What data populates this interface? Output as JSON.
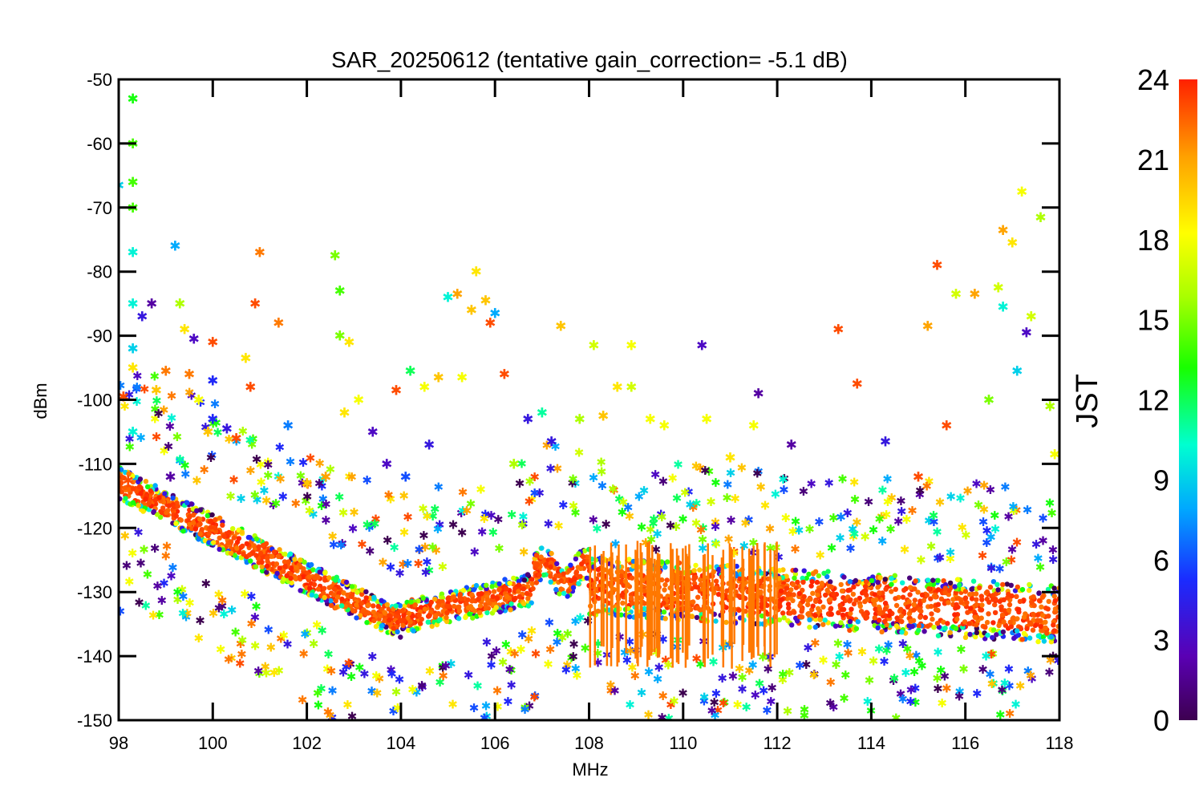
{
  "chart_data": {
    "type": "scatter",
    "title": "SAR_20250612 (tentative gain_correction= -5.1 dB)",
    "xlabel": "MHz",
    "ylabel": "dBm",
    "xlim": [
      98,
      118
    ],
    "ylim": [
      -150,
      -50
    ],
    "x_ticks": [
      "98",
      "100",
      "102",
      "104",
      "106",
      "108",
      "110",
      "112",
      "114",
      "116",
      "118"
    ],
    "y_ticks": [
      "-50",
      "-60",
      "-70",
      "-80",
      "-90",
      "-100",
      "-110",
      "-120",
      "-130",
      "-140",
      "-150"
    ],
    "colorbar": {
      "label": "JST",
      "range": [
        0,
        24
      ],
      "ticks": [
        "0",
        "3",
        "6",
        "9",
        "12",
        "15",
        "18",
        "21",
        "24"
      ],
      "colormap": "rainbow (purple to red)"
    },
    "marker": "asterisk",
    "grid": false,
    "series": [
      {
        "values_note": "",
        "points": [
          [
            98.1,
            -99.5,
            23
          ],
          [
            98.2,
            -112.6,
            23
          ],
          [
            98.3,
            -95.0,
            19
          ],
          [
            98.3,
            -53.0,
            13
          ],
          [
            98.3,
            -60.0,
            14
          ],
          [
            98.3,
            -66.0,
            14
          ],
          [
            98.3,
            -70.0,
            14
          ],
          [
            98.3,
            -77.0,
            10
          ],
          [
            98.3,
            -85.0,
            10
          ],
          [
            98.3,
            -92.0,
            9
          ],
          [
            98.3,
            -105.0,
            10
          ],
          [
            98.0,
            -66.5,
            9
          ],
          [
            98.5,
            -87.0,
            4
          ],
          [
            98.7,
            -85.0,
            2
          ],
          [
            98.8,
            -98.5,
            20
          ],
          [
            99.0,
            -95.5,
            22
          ],
          [
            99.1,
            -112.0,
            2
          ],
          [
            99.2,
            -76.0,
            8
          ],
          [
            99.3,
            -85.0,
            16
          ],
          [
            99.4,
            -89.0,
            19
          ],
          [
            99.5,
            -96.0,
            22
          ],
          [
            99.6,
            -90.5,
            3
          ],
          [
            99.7,
            -100.0,
            18
          ],
          [
            99.9,
            -105.0,
            20
          ],
          [
            100.0,
            -91.0,
            23
          ],
          [
            100.0,
            -97.0,
            5
          ],
          [
            100.0,
            -103.0,
            5
          ],
          [
            100.3,
            -104.5,
            4
          ],
          [
            100.5,
            -106.0,
            23
          ],
          [
            100.7,
            -93.5,
            19
          ],
          [
            100.8,
            -98.0,
            23
          ],
          [
            100.9,
            -85.0,
            23
          ],
          [
            101.0,
            -77.0,
            22
          ],
          [
            101.4,
            -88.0,
            22
          ],
          [
            101.6,
            -104.0,
            7
          ],
          [
            102.0,
            -113.0,
            20
          ],
          [
            102.4,
            -112.0,
            21
          ],
          [
            102.6,
            -77.5,
            15
          ],
          [
            102.7,
            -83.0,
            14
          ],
          [
            102.7,
            -90.0,
            15
          ],
          [
            102.8,
            -102.0,
            19
          ],
          [
            102.9,
            -91.0,
            19
          ],
          [
            103.1,
            -100.0,
            18
          ],
          [
            103.4,
            -105.0,
            3
          ],
          [
            103.7,
            -110.0,
            3
          ],
          [
            103.9,
            -98.5,
            23
          ],
          [
            104.1,
            -112.0,
            6
          ],
          [
            104.2,
            -95.5,
            12
          ],
          [
            104.5,
            -98.0,
            18
          ],
          [
            104.6,
            -107.0,
            4
          ],
          [
            104.8,
            -96.5,
            20
          ],
          [
            105.0,
            -84.0,
            10
          ],
          [
            105.2,
            -83.5,
            21
          ],
          [
            105.3,
            -96.5,
            18
          ],
          [
            105.5,
            -86.0,
            20
          ],
          [
            105.6,
            -80.0,
            19
          ],
          [
            105.8,
            -84.5,
            20
          ],
          [
            105.9,
            -88.0,
            23
          ],
          [
            106.0,
            -86.5,
            8
          ],
          [
            106.2,
            -96.0,
            23
          ],
          [
            106.4,
            -110.0,
            16
          ],
          [
            106.7,
            -103.0,
            4
          ],
          [
            107.0,
            -102.0,
            11
          ],
          [
            107.2,
            -106.5,
            4
          ],
          [
            107.4,
            -88.5,
            20
          ],
          [
            107.8,
            -103.0,
            16
          ],
          [
            108.1,
            -91.5,
            17
          ],
          [
            108.3,
            -102.5,
            20
          ],
          [
            108.6,
            -98.0,
            19
          ],
          [
            108.9,
            -91.5,
            18
          ],
          [
            108.9,
            -98.0,
            17
          ],
          [
            109.3,
            -103.0,
            18
          ],
          [
            109.6,
            -104.0,
            18
          ],
          [
            110.4,
            -91.5,
            3
          ],
          [
            110.5,
            -103.0,
            18
          ],
          [
            111.0,
            -109.0,
            19
          ],
          [
            111.5,
            -104.0,
            18
          ],
          [
            111.6,
            -99.0,
            2
          ],
          [
            112.3,
            -107.0,
            2
          ],
          [
            113.3,
            -89.0,
            23
          ],
          [
            113.7,
            -97.5,
            23
          ],
          [
            114.3,
            -106.5,
            4
          ],
          [
            115.0,
            -112.0,
            23
          ],
          [
            115.2,
            -88.5,
            21
          ],
          [
            115.4,
            -79.0,
            23
          ],
          [
            115.6,
            -104.0,
            23
          ],
          [
            115.8,
            -83.5,
            17
          ],
          [
            116.2,
            -83.5,
            21
          ],
          [
            116.5,
            -100.0,
            15
          ],
          [
            116.7,
            -82.5,
            17
          ],
          [
            116.8,
            -73.5,
            21
          ],
          [
            116.8,
            -85.5,
            10
          ],
          [
            117.0,
            -75.5,
            19
          ],
          [
            117.1,
            -95.5,
            9
          ],
          [
            117.2,
            -67.5,
            18
          ],
          [
            117.3,
            -89.5,
            3
          ],
          [
            117.4,
            -87.0,
            17
          ],
          [
            117.6,
            -71.5,
            16
          ],
          [
            117.8,
            -101.0,
            16
          ],
          [
            117.9,
            -108.5,
            18
          ]
        ]
      }
    ]
  }
}
